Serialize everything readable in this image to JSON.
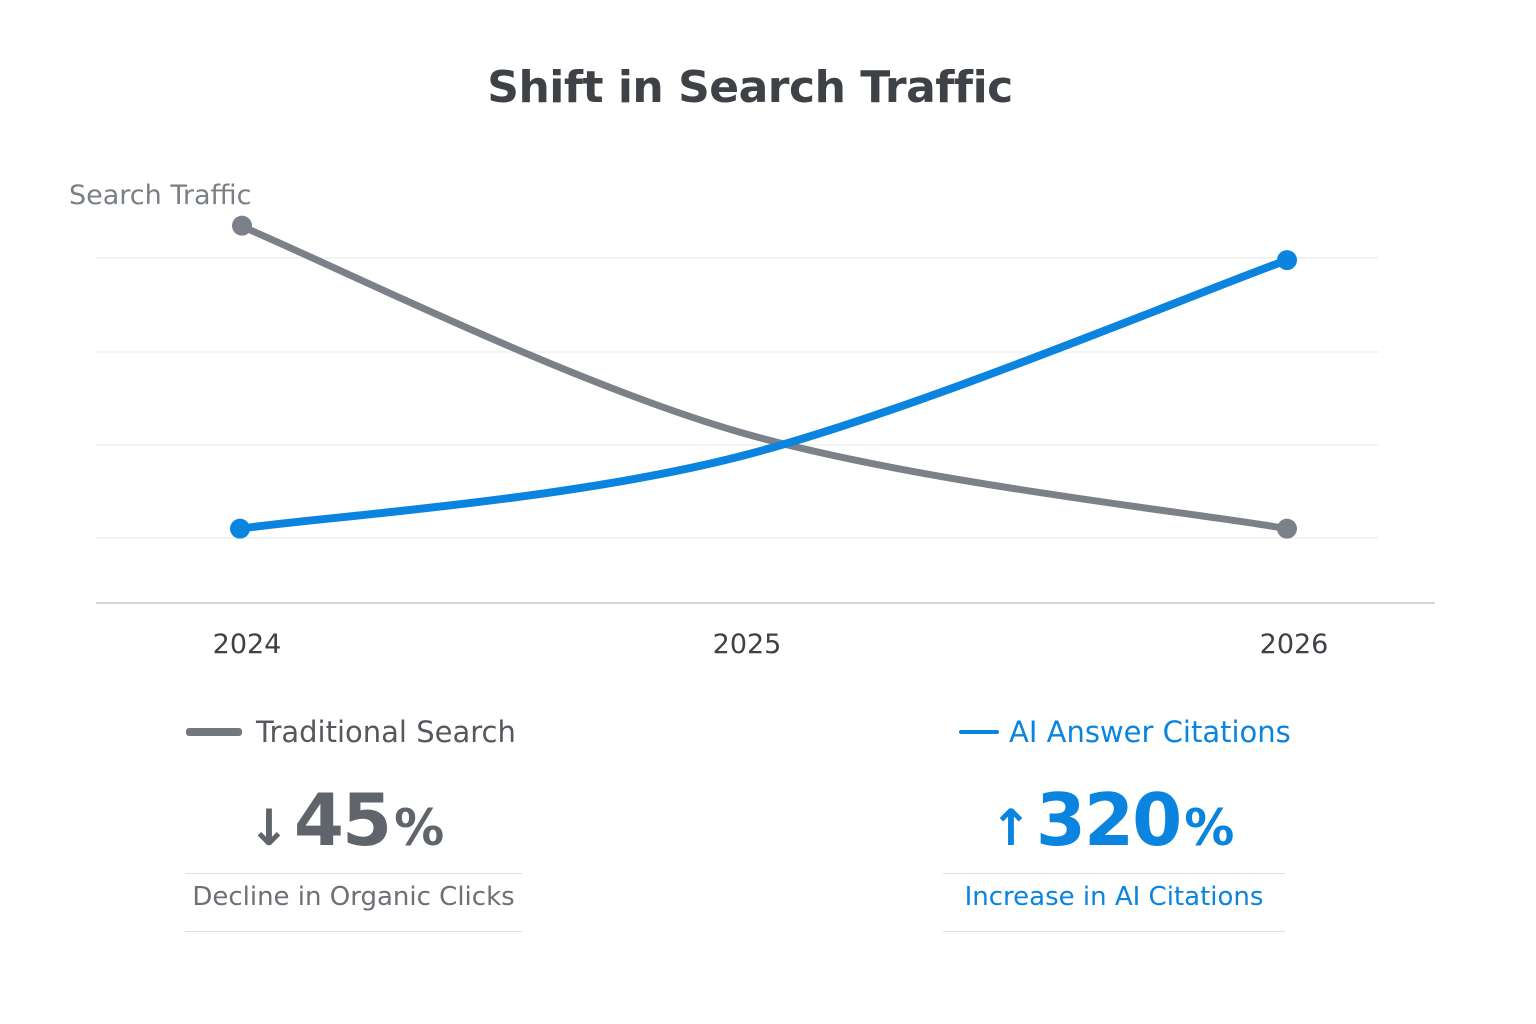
{
  "chart_data": {
    "type": "line",
    "title": "Shift in Search Traffic",
    "xlabel": "",
    "ylabel": "Search Traffic",
    "categories": [
      "2024",
      "2025",
      "2026"
    ],
    "ylim": [
      0,
      100
    ],
    "grid": true,
    "series": [
      {
        "name": "Traditional Search",
        "color": "#7c8189",
        "values": [
          100,
          40,
          12
        ]
      },
      {
        "name": "AI Answer Citations",
        "color": "#0a84de",
        "values": [
          12,
          33,
          90
        ]
      }
    ],
    "legend_position": "bottom"
  },
  "stats": [
    {
      "arrow": "↓",
      "value": "45",
      "unit": "%",
      "caption": "Decline in Organic Clicks",
      "color": "#60656b"
    },
    {
      "arrow": "↑",
      "value": "320",
      "unit": "%",
      "caption": "Increase in AI Citations",
      "color": "#0a84de"
    }
  ]
}
